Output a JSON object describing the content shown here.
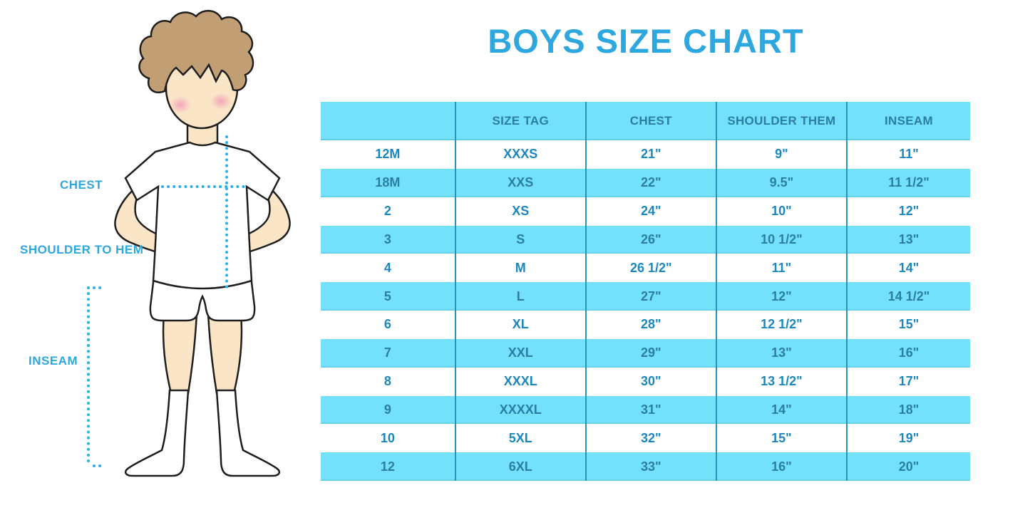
{
  "title": "BOYS SIZE CHART",
  "figure": {
    "labels": {
      "chest": "CHEST",
      "shoulder_to_hem": "SHOULDER TO HEM",
      "inseam": "INSEAM"
    }
  },
  "table": {
    "columns": [
      "",
      "SIZE TAG",
      "CHEST",
      "SHOULDER THEM",
      "INSEAM"
    ],
    "rows": [
      [
        "12M",
        "XXXS",
        "21\"",
        "9\"",
        "11\""
      ],
      [
        "18M",
        "XXS",
        "22\"",
        "9.5\"",
        "11 1/2\""
      ],
      [
        "2",
        "XS",
        "24\"",
        "10\"",
        "12\""
      ],
      [
        "3",
        "S",
        "26\"",
        "10 1/2\"",
        "13\""
      ],
      [
        "4",
        "M",
        "26 1/2\"",
        "11\"",
        "14\""
      ],
      [
        "5",
        "L",
        "27\"",
        "12\"",
        "14 1/2\""
      ],
      [
        "6",
        "XL",
        "28\"",
        "12 1/2\"",
        "15\""
      ],
      [
        "7",
        "XXL",
        "29\"",
        "13\"",
        "16\""
      ],
      [
        "8",
        "XXXL",
        "30\"",
        "13 1/2\"",
        "17\""
      ],
      [
        "9",
        "XXXXL",
        "31\"",
        "14\"",
        "18\""
      ],
      [
        "10",
        "5XL",
        "32\"",
        "15\"",
        "19\""
      ],
      [
        "12",
        "6XL",
        "33\"",
        "16\"",
        "20\""
      ]
    ]
  },
  "colors": {
    "accent_blue": "#2ea7de",
    "band_cyan": "#74e1fa",
    "header_text": "#2a7ea6",
    "white_row_text": "#1a87be",
    "divider": "#2792bc",
    "dotted_line": "#2bb3e8",
    "skin": "#fae5c6",
    "hair": "#c29e74",
    "blush": "#f2a3b8"
  }
}
